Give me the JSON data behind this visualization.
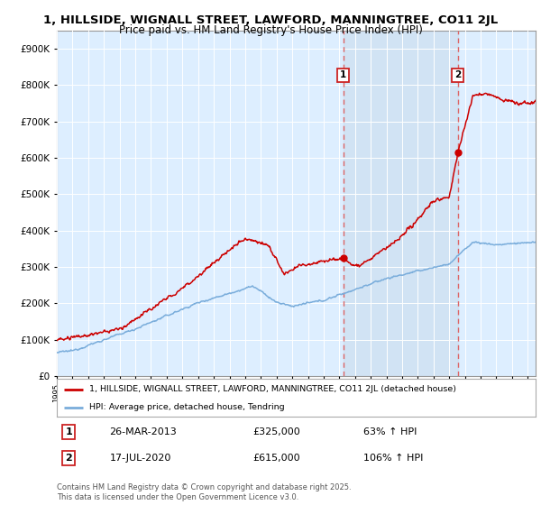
{
  "title_line1": "1, HILLSIDE, WIGNALL STREET, LAWFORD, MANNINGTREE, CO11 2JL",
  "title_line2": "Price paid vs. HM Land Registry's House Price Index (HPI)",
  "red_line_label": "1, HILLSIDE, WIGNALL STREET, LAWFORD, MANNINGTREE, CO11 2JL (detached house)",
  "blue_line_label": "HPI: Average price, detached house, Tendring",
  "sale1_date": "26-MAR-2013",
  "sale1_price": 325000,
  "sale1_label": "63% ↑ HPI",
  "sale2_date": "17-JUL-2020",
  "sale2_price": 615000,
  "sale2_label": "106% ↑ HPI",
  "footer": "Contains HM Land Registry data © Crown copyright and database right 2025.\nThis data is licensed under the Open Government Licence v3.0.",
  "ylim": [
    0,
    950000
  ],
  "sale1_year": 2013.24,
  "sale2_year": 2020.54,
  "red_color": "#cc0000",
  "blue_color": "#7aaddb",
  "vline_color": "#dd6666",
  "shade_color": "#ccdff0",
  "plot_bg_color": "#ddeeff",
  "grid_color": "#ffffff"
}
